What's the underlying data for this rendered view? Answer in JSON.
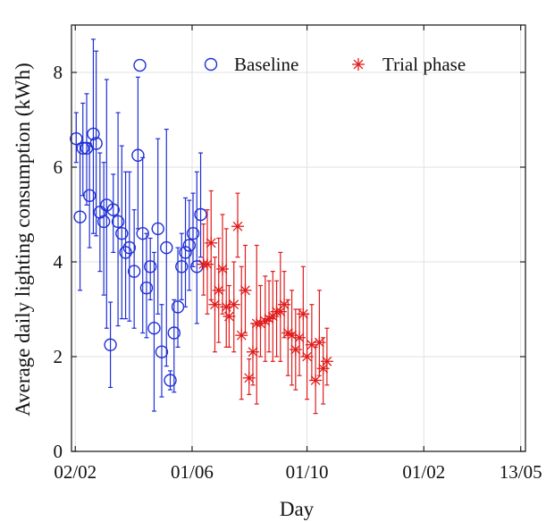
{
  "chart_data": {
    "type": "scatter",
    "xlabel": "Day",
    "ylabel": "Average daily lighting consumption (kWh)",
    "x_tick_labels": [
      "02/02",
      "01/06",
      "01/10",
      "01/02",
      "13/05"
    ],
    "x_tick_positions": [
      0,
      123,
      244,
      367,
      469
    ],
    "xlim": [
      -4,
      474
    ],
    "ylim": [
      0,
      9
    ],
    "y_ticks": [
      0,
      2,
      4,
      6,
      8
    ],
    "grid": true,
    "legend_position": "top",
    "colors": {
      "baseline": "#1f2fd6",
      "trial": "#e01b1b"
    },
    "series": [
      {
        "name": "Baseline",
        "marker": "circle",
        "color": "#1f2fd6",
        "points": [
          {
            "x": 1,
            "y": 6.6,
            "lo": 6.1,
            "hi": 7.15
          },
          {
            "x": 5,
            "y": 4.95,
            "lo": 3.4,
            "hi": 6.5
          },
          {
            "x": 8,
            "y": 6.4,
            "lo": 5.4,
            "hi": 7.35
          },
          {
            "x": 12,
            "y": 6.4,
            "lo": 5.2,
            "hi": 7.55
          },
          {
            "x": 15,
            "y": 5.4,
            "lo": 4.3,
            "hi": 6.5
          },
          {
            "x": 19,
            "y": 6.7,
            "lo": 4.6,
            "hi": 8.7
          },
          {
            "x": 22,
            "y": 6.5,
            "lo": 4.55,
            "hi": 8.45
          },
          {
            "x": 26,
            "y": 5.05,
            "lo": 3.8,
            "hi": 6.3
          },
          {
            "x": 30,
            "y": 4.85,
            "lo": 3.3,
            "hi": 6.1
          },
          {
            "x": 33,
            "y": 5.2,
            "lo": 2.6,
            "hi": 7.85
          },
          {
            "x": 37,
            "y": 2.25,
            "lo": 1.35,
            "hi": 3.15
          },
          {
            "x": 40,
            "y": 5.1,
            "lo": 4.2,
            "hi": 5.85
          },
          {
            "x": 45,
            "y": 4.85,
            "lo": 2.65,
            "hi": 7.15
          },
          {
            "x": 49,
            "y": 4.6,
            "lo": 2.8,
            "hi": 6.45
          },
          {
            "x": 53,
            "y": 4.2,
            "lo": 2.8,
            "hi": 5.9
          },
          {
            "x": 57,
            "y": 4.3,
            "lo": 2.75,
            "hi": 5.9
          },
          {
            "x": 62,
            "y": 3.8,
            "lo": 2.6,
            "hi": 5.1
          },
          {
            "x": 66,
            "y": 6.25,
            "lo": 4.7,
            "hi": 7.9
          },
          {
            "x": 68,
            "y": 8.15,
            "lo": 8.15,
            "hi": 8.15
          },
          {
            "x": 71,
            "y": 4.6,
            "lo": 2.5,
            "hi": 6.2
          },
          {
            "x": 75,
            "y": 3.45,
            "lo": 2.4,
            "hi": 4.6
          },
          {
            "x": 79,
            "y": 3.9,
            "lo": 3.2,
            "hi": 4.5
          },
          {
            "x": 83,
            "y": 2.6,
            "lo": 0.85,
            "hi": 4.2
          },
          {
            "x": 87,
            "y": 4.7,
            "lo": 2.9,
            "hi": 6.6
          },
          {
            "x": 91,
            "y": 2.1,
            "lo": 1.15,
            "hi": 3.1
          },
          {
            "x": 96,
            "y": 4.3,
            "lo": 1.8,
            "hi": 6.8
          },
          {
            "x": 100,
            "y": 1.5,
            "lo": 1.3,
            "hi": 1.7
          },
          {
            "x": 104,
            "y": 2.5,
            "lo": 1.25,
            "hi": 3.2
          },
          {
            "x": 108,
            "y": 3.05,
            "lo": 2.2,
            "hi": 4.3
          },
          {
            "x": 112,
            "y": 3.9,
            "lo": 3.2,
            "hi": 4.6
          },
          {
            "x": 116,
            "y": 4.2,
            "lo": 3.05,
            "hi": 5.35
          },
          {
            "x": 120,
            "y": 4.35,
            "lo": 3.4,
            "hi": 5.3
          },
          {
            "x": 124,
            "y": 4.6,
            "lo": 3.9,
            "hi": 5.45
          },
          {
            "x": 128,
            "y": 3.9,
            "lo": 2.7,
            "hi": 5.9
          },
          {
            "x": 132,
            "y": 5.0,
            "lo": 4.1,
            "hi": 6.3
          }
        ]
      },
      {
        "name": "Trial phase",
        "marker": "asterisk",
        "color": "#e01b1b",
        "points": [
          {
            "x": 135,
            "y": 3.95,
            "lo": 3.3,
            "hi": 4.8
          },
          {
            "x": 139,
            "y": 3.95,
            "lo": 2.9,
            "hi": 5.1
          },
          {
            "x": 143,
            "y": 4.4,
            "lo": 3.2,
            "hi": 5.5
          },
          {
            "x": 147,
            "y": 3.1,
            "lo": 2.1,
            "hi": 4.1
          },
          {
            "x": 151,
            "y": 3.4,
            "lo": 2.3,
            "hi": 4.5
          },
          {
            "x": 155,
            "y": 3.85,
            "lo": 2.9,
            "hi": 5.0
          },
          {
            "x": 159,
            "y": 3.05,
            "lo": 2.2,
            "hi": 4.7
          },
          {
            "x": 162,
            "y": 2.85,
            "lo": 2.2,
            "hi": 3.5
          },
          {
            "x": 167,
            "y": 3.1,
            "lo": 2.1,
            "hi": 4.0
          },
          {
            "x": 171,
            "y": 4.75,
            "lo": 4.1,
            "hi": 5.45
          },
          {
            "x": 175,
            "y": 2.45,
            "lo": 1.1,
            "hi": 3.9
          },
          {
            "x": 179,
            "y": 3.4,
            "lo": 2.5,
            "hi": 4.35
          },
          {
            "x": 183,
            "y": 1.55,
            "lo": 1.2,
            "hi": 1.95
          },
          {
            "x": 187,
            "y": 2.1,
            "lo": 1.4,
            "hi": 2.7
          },
          {
            "x": 191,
            "y": 2.7,
            "lo": 1.0,
            "hi": 4.35
          },
          {
            "x": 195,
            "y": 2.7,
            "lo": 2.0,
            "hi": 3.5
          },
          {
            "x": 200,
            "y": 2.75,
            "lo": 1.9,
            "hi": 3.7
          },
          {
            "x": 204,
            "y": 2.8,
            "lo": 2.1,
            "hi": 3.6
          },
          {
            "x": 208,
            "y": 2.85,
            "lo": 1.9,
            "hi": 3.8
          },
          {
            "x": 212,
            "y": 2.95,
            "lo": 2.0,
            "hi": 3.6
          },
          {
            "x": 216,
            "y": 2.95,
            "lo": 1.9,
            "hi": 4.2
          },
          {
            "x": 220,
            "y": 3.1,
            "lo": 2.4,
            "hi": 3.8
          },
          {
            "x": 224,
            "y": 2.5,
            "lo": 1.6,
            "hi": 3.2
          },
          {
            "x": 228,
            "y": 2.45,
            "lo": 1.4,
            "hi": 3.4
          },
          {
            "x": 232,
            "y": 2.15,
            "lo": 1.3,
            "hi": 3.0
          },
          {
            "x": 236,
            "y": 2.4,
            "lo": 1.6,
            "hi": 3.0
          },
          {
            "x": 240,
            "y": 2.9,
            "lo": 2.0,
            "hi": 3.9
          },
          {
            "x": 244,
            "y": 2.0,
            "lo": 1.1,
            "hi": 2.9
          },
          {
            "x": 249,
            "y": 2.25,
            "lo": 1.5,
            "hi": 3.1
          },
          {
            "x": 253,
            "y": 1.5,
            "lo": 0.8,
            "hi": 2.2
          },
          {
            "x": 257,
            "y": 2.3,
            "lo": 1.6,
            "hi": 3.4
          },
          {
            "x": 261,
            "y": 1.75,
            "lo": 1.0,
            "hi": 2.4
          },
          {
            "x": 265,
            "y": 1.9,
            "lo": 1.4,
            "hi": 2.6
          }
        ]
      }
    ]
  }
}
